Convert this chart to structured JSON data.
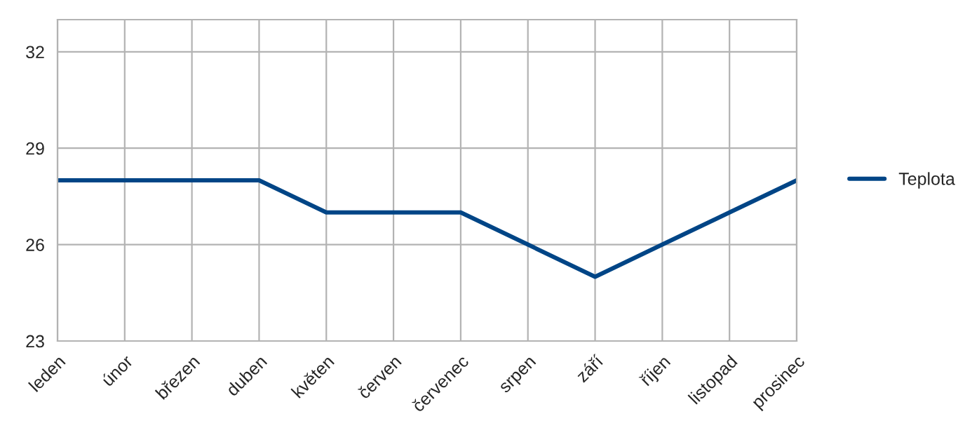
{
  "chart_data": {
    "type": "line",
    "categories": [
      "leden",
      "únor",
      "březen",
      "duben",
      "květen",
      "červen",
      "červenec",
      "srpen",
      "září",
      "říjen",
      "listopad",
      "prosinec"
    ],
    "series": [
      {
        "name": "Teplota",
        "color": "#004586",
        "values": [
          28,
          28,
          28,
          28,
          27,
          27,
          27,
          26,
          25,
          26,
          27,
          28
        ]
      }
    ],
    "ylim": [
      23,
      33
    ],
    "yticks": [
      23,
      26,
      29,
      32
    ],
    "grid": true,
    "legend": "right",
    "marker": "none",
    "line_style": "solid"
  }
}
